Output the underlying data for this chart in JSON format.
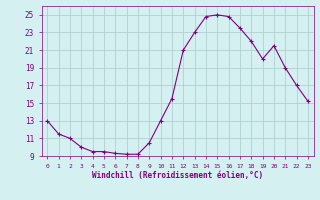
{
  "x": [
    0,
    1,
    2,
    3,
    4,
    5,
    6,
    7,
    8,
    9,
    10,
    11,
    12,
    13,
    14,
    15,
    16,
    17,
    18,
    19,
    20,
    21,
    22,
    23
  ],
  "y": [
    13,
    11.5,
    11,
    10,
    9.5,
    9.5,
    9.3,
    9.2,
    9.2,
    10.5,
    13,
    15.5,
    21,
    23,
    24.8,
    25,
    24.8,
    23.5,
    22,
    20,
    21.5,
    19,
    17,
    15.2
  ],
  "line_color": "#800080",
  "marker": "+",
  "marker_size": 3,
  "bg_color": "#d4f0f0",
  "grid_color": "#aacccc",
  "ylim": [
    9,
    26
  ],
  "xlim": [
    -0.5,
    23.5
  ],
  "yticks": [
    9,
    11,
    13,
    15,
    17,
    19,
    21,
    23,
    25
  ],
  "xticks": [
    0,
    1,
    2,
    3,
    4,
    5,
    6,
    7,
    8,
    9,
    10,
    11,
    12,
    13,
    14,
    15,
    16,
    17,
    18,
    19,
    20,
    21,
    22,
    23
  ],
  "xlabel": "Windchill (Refroidissement éolien,°C)",
  "label_color": "#800080",
  "axis_color": "#800080",
  "tick_color": "#800080"
}
